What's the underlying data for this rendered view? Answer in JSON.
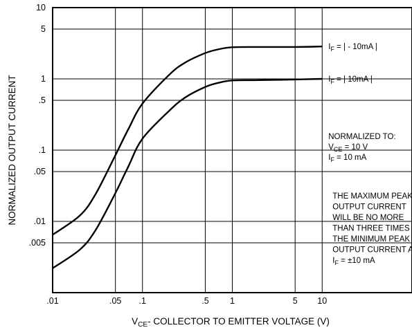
{
  "chart_data": {
    "type": "line",
    "x_scale": "log",
    "y_scale": "log",
    "xlim": [
      0.01,
      100
    ],
    "ylim": [
      0.001,
      10
    ],
    "grid": true,
    "x_ticks": [
      {
        "value": 0.01,
        "label": ".01"
      },
      {
        "value": 0.05,
        "label": ".05"
      },
      {
        "value": 0.1,
        "label": ".1"
      },
      {
        "value": 0.5,
        "label": ".5"
      },
      {
        "value": 1,
        "label": "1"
      },
      {
        "value": 5,
        "label": "5"
      },
      {
        "value": 10,
        "label": "10"
      }
    ],
    "y_ticks": [
      {
        "value": 10,
        "label": "10"
      },
      {
        "value": 5,
        "label": "5"
      },
      {
        "value": 1,
        "label": "1"
      },
      {
        "value": 0.5,
        "label": ".5"
      },
      {
        "value": 0.1,
        "label": ".1"
      },
      {
        "value": 0.05,
        "label": ".05"
      },
      {
        "value": 0.01,
        "label": ".01"
      },
      {
        "value": 0.005,
        "label": ".005"
      }
    ],
    "xlabel": {
      "prefix": "V",
      "sub": "CE",
      "suffix": "- COLLECTOR TO EMITTER VOLTAGE (V)"
    },
    "ylabel": "NORMALIZED OUTPUT CURRENT",
    "series": [
      {
        "id": "if-neg-10ma",
        "label": {
          "prefix": "I",
          "sub": "F",
          "text": " = | - 10mA |"
        },
        "points": [
          [
            0.01,
            0.0065
          ],
          [
            0.02,
            0.012
          ],
          [
            0.03,
            0.024
          ],
          [
            0.05,
            0.085
          ],
          [
            0.07,
            0.2
          ],
          [
            0.1,
            0.45
          ],
          [
            0.2,
            1.15
          ],
          [
            0.3,
            1.7
          ],
          [
            0.5,
            2.3
          ],
          [
            0.7,
            2.6
          ],
          [
            1,
            2.78
          ],
          [
            2,
            2.8
          ],
          [
            5,
            2.8
          ],
          [
            10,
            2.85
          ]
        ]
      },
      {
        "id": "if-10ma",
        "label": {
          "prefix": "I",
          "sub": "F",
          "text": " = | 10mA |"
        },
        "points": [
          [
            0.01,
            0.0022
          ],
          [
            0.02,
            0.004
          ],
          [
            0.03,
            0.0075
          ],
          [
            0.05,
            0.025
          ],
          [
            0.07,
            0.06
          ],
          [
            0.1,
            0.145
          ],
          [
            0.2,
            0.36
          ],
          [
            0.3,
            0.55
          ],
          [
            0.5,
            0.77
          ],
          [
            0.7,
            0.88
          ],
          [
            1,
            0.95
          ],
          [
            2,
            0.96
          ],
          [
            5,
            0.98
          ],
          [
            10,
            1.0
          ]
        ]
      }
    ],
    "annotations": {
      "normalized": [
        {
          "text": "NORMALIZED TO:"
        },
        {
          "prefix": "V",
          "sub": "CE",
          "text": " = 10 V"
        },
        {
          "prefix": "I",
          "sub": "F",
          "text": " = 10 mA"
        }
      ],
      "note": [
        {
          "text": "THE MAXIMUM PEAK"
        },
        {
          "text": "OUTPUT CURRENT"
        },
        {
          "text": "WILL BE NO MORE"
        },
        {
          "text": "THAN THREE TIMES"
        },
        {
          "text": "THE MINIMUM PEAK"
        },
        {
          "text": "OUTPUT CURRENT AT"
        },
        {
          "prefix": "I",
          "sub": "F",
          "text": " = ±10 mA"
        }
      ]
    }
  }
}
